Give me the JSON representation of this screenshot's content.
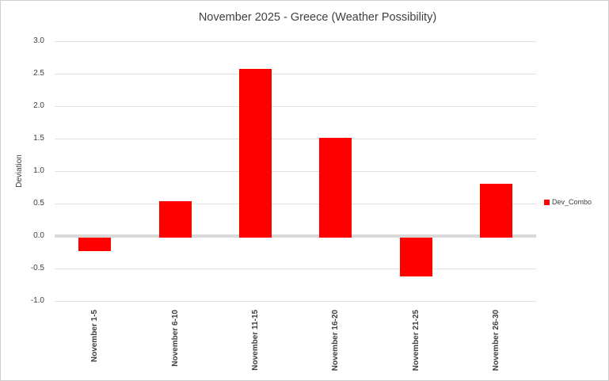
{
  "chart_data": {
    "type": "bar",
    "title": "November 2025 - Greece (Weather Possibility)",
    "xlabel": "",
    "ylabel": "Deviation",
    "categories": [
      "November 1-5",
      "November 6-10",
      "November 11-15",
      "November 16-20",
      "November 21-25",
      "November 26-30"
    ],
    "series": [
      {
        "name": "Dev_Combo",
        "color": "#ff0000",
        "values": [
          -0.23,
          0.54,
          2.57,
          1.51,
          -0.62,
          0.8
        ]
      }
    ],
    "ylim": [
      -1.0,
      3.0
    ],
    "ytick_step": 0.5,
    "ytick_labels": [
      "3.0",
      "2.5",
      "2.0",
      "1.5",
      "1.0",
      "0.5",
      "0.0",
      "-0.5",
      "-1.0"
    ],
    "grid": true,
    "legend_position": "right",
    "colors": {
      "bar": "#ff0000",
      "gridline": "#e0e0e0",
      "zero_line": "#d9d9d9",
      "text": "#404040",
      "background": "#ffffff",
      "border": "#cfcfcf"
    }
  }
}
